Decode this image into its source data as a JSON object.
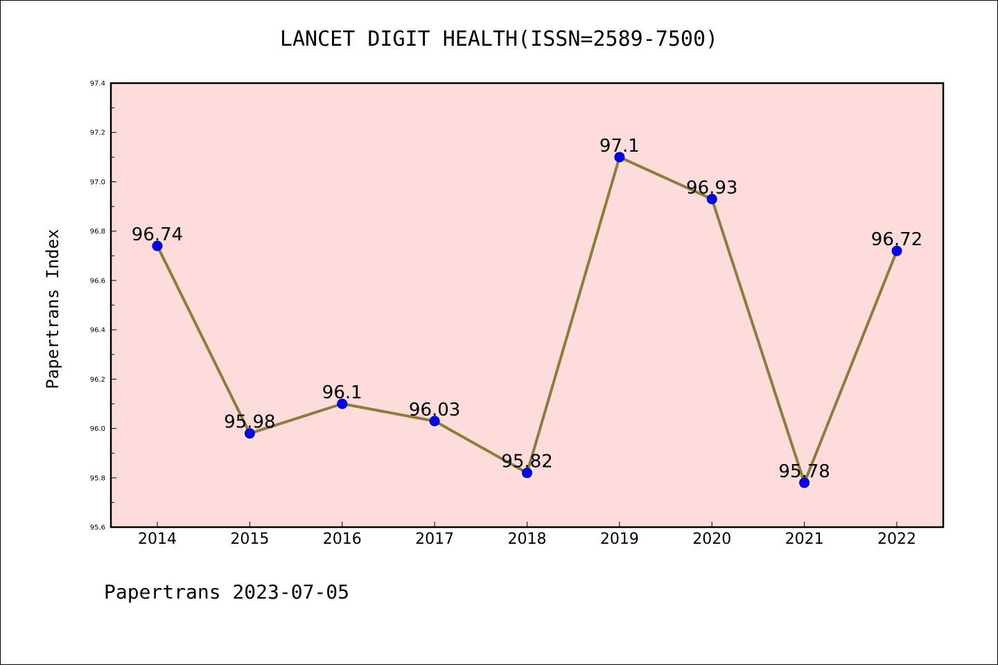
{
  "chart_data": {
    "type": "line",
    "title": "LANCET DIGIT HEALTH(ISSN=2589-7500)",
    "ylabel": "Papertrans Index",
    "xlabel": "",
    "categories": [
      "2014",
      "2015",
      "2016",
      "2017",
      "2018",
      "2019",
      "2020",
      "2021",
      "2022"
    ],
    "series": [
      {
        "values": [
          96.74,
          95.98,
          96.1,
          96.03,
          95.82,
          97.1,
          96.93,
          95.78,
          96.72
        ]
      }
    ],
    "data_labels": [
      "96.74",
      "95.98",
      "96.1",
      "96.03",
      "95.82",
      "97.1",
      "96.93",
      "95.78",
      "96.72"
    ],
    "ylim": [
      95.6,
      97.4
    ],
    "yticks": [
      95.6,
      95.8,
      96.0,
      96.2,
      96.4,
      96.6,
      96.8,
      97.0,
      97.2,
      97.4
    ],
    "ytick_labels": [
      "95.6",
      "95.8",
      "96.0",
      "96.2",
      "96.4",
      "96.6",
      "96.8",
      "97.0",
      "97.2",
      "97.4"
    ],
    "grid": false,
    "colors": {
      "plot_background": "#fddcdb",
      "line": "#8b7d3a",
      "marker_fill": "#0000ff",
      "marker_edge": "#00008b"
    }
  },
  "footer": {
    "text": "Papertrans 2023-07-05"
  }
}
